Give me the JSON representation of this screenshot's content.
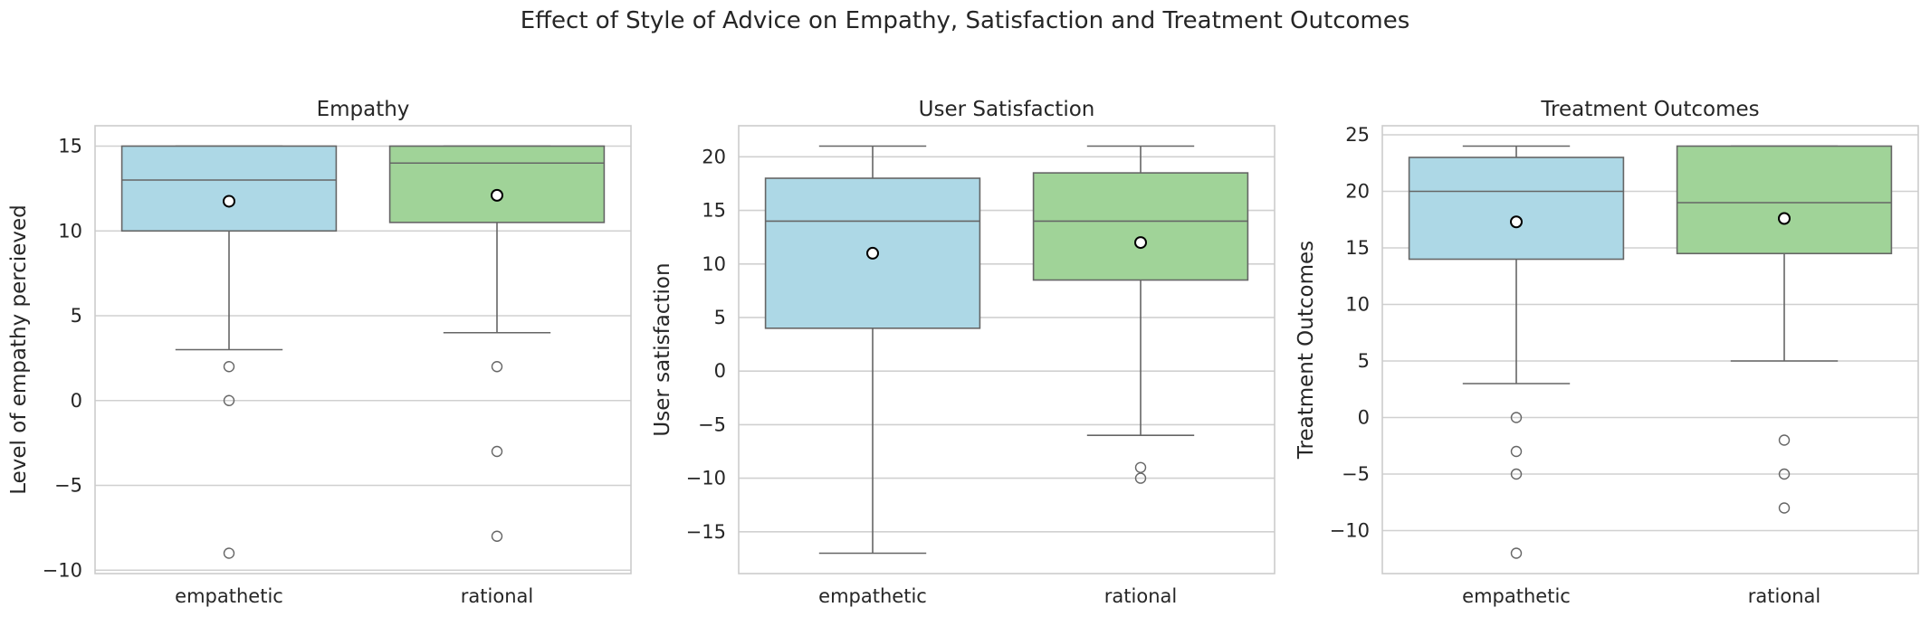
{
  "suptitle": "Effect of Style of Advice on Empathy, Satisfaction and Treatment Outcomes",
  "colors": {
    "empathetic": "#add8e6",
    "rational": "#a0d398",
    "grid": "#d0d0d0",
    "frame": "#cccccc",
    "line": "#666666"
  },
  "chart_data": [
    {
      "type": "box",
      "title": "Empathy",
      "ylabel": "Level of empathy percieved",
      "categories": [
        "empathetic",
        "rational"
      ],
      "ylim": [
        -10.2,
        16.2
      ],
      "yticks": [
        -10,
        -5,
        0,
        5,
        10,
        15
      ],
      "ytick_labels": [
        "−10",
        "−5",
        "0",
        "5",
        "10",
        "15"
      ],
      "grid": true,
      "boxes": [
        {
          "q1": 10,
          "median": 13,
          "q3": 15,
          "whisker_low": 3,
          "whisker_high": 15,
          "mean": 11.75,
          "outliers": [
            2,
            0,
            -9
          ]
        },
        {
          "q1": 10.5,
          "median": 14,
          "q3": 15,
          "whisker_low": 4,
          "whisker_high": 15,
          "mean": 12.1,
          "outliers": [
            2,
            -3,
            -8
          ]
        }
      ]
    },
    {
      "type": "box",
      "title": "User Satisfaction",
      "ylabel": "User satisfaction",
      "categories": [
        "empathetic",
        "rational"
      ],
      "ylim": [
        -18.9,
        22.9
      ],
      "yticks": [
        -15,
        -10,
        -5,
        0,
        5,
        10,
        15,
        20
      ],
      "ytick_labels": [
        "−15",
        "−10",
        "−5",
        "0",
        "5",
        "10",
        "15",
        "20"
      ],
      "grid": true,
      "boxes": [
        {
          "q1": 4,
          "median": 14,
          "q3": 18,
          "whisker_low": -17,
          "whisker_high": 21,
          "mean": 11,
          "outliers": []
        },
        {
          "q1": 8.5,
          "median": 14,
          "q3": 18.5,
          "whisker_low": -6,
          "whisker_high": 21,
          "mean": 12,
          "outliers": [
            -9,
            -10
          ]
        }
      ]
    },
    {
      "type": "box",
      "title": "Treatment Outcomes",
      "ylabel": "Treatment Outcomes",
      "categories": [
        "empathetic",
        "rational"
      ],
      "ylim": [
        -13.8,
        25.8
      ],
      "yticks": [
        -10,
        -5,
        0,
        5,
        10,
        15,
        20,
        25
      ],
      "ytick_labels": [
        "−10",
        "−5",
        "0",
        "5",
        "10",
        "15",
        "20",
        "25"
      ],
      "grid": true,
      "boxes": [
        {
          "q1": 14,
          "median": 20,
          "q3": 23,
          "whisker_low": 3,
          "whisker_high": 24,
          "mean": 17.3,
          "outliers": [
            0,
            -3,
            -5,
            -12
          ]
        },
        {
          "q1": 14.5,
          "median": 19,
          "q3": 24,
          "whisker_low": 5,
          "whisker_high": 24,
          "mean": 17.6,
          "outliers": [
            -2,
            -5,
            -8
          ]
        }
      ]
    }
  ]
}
